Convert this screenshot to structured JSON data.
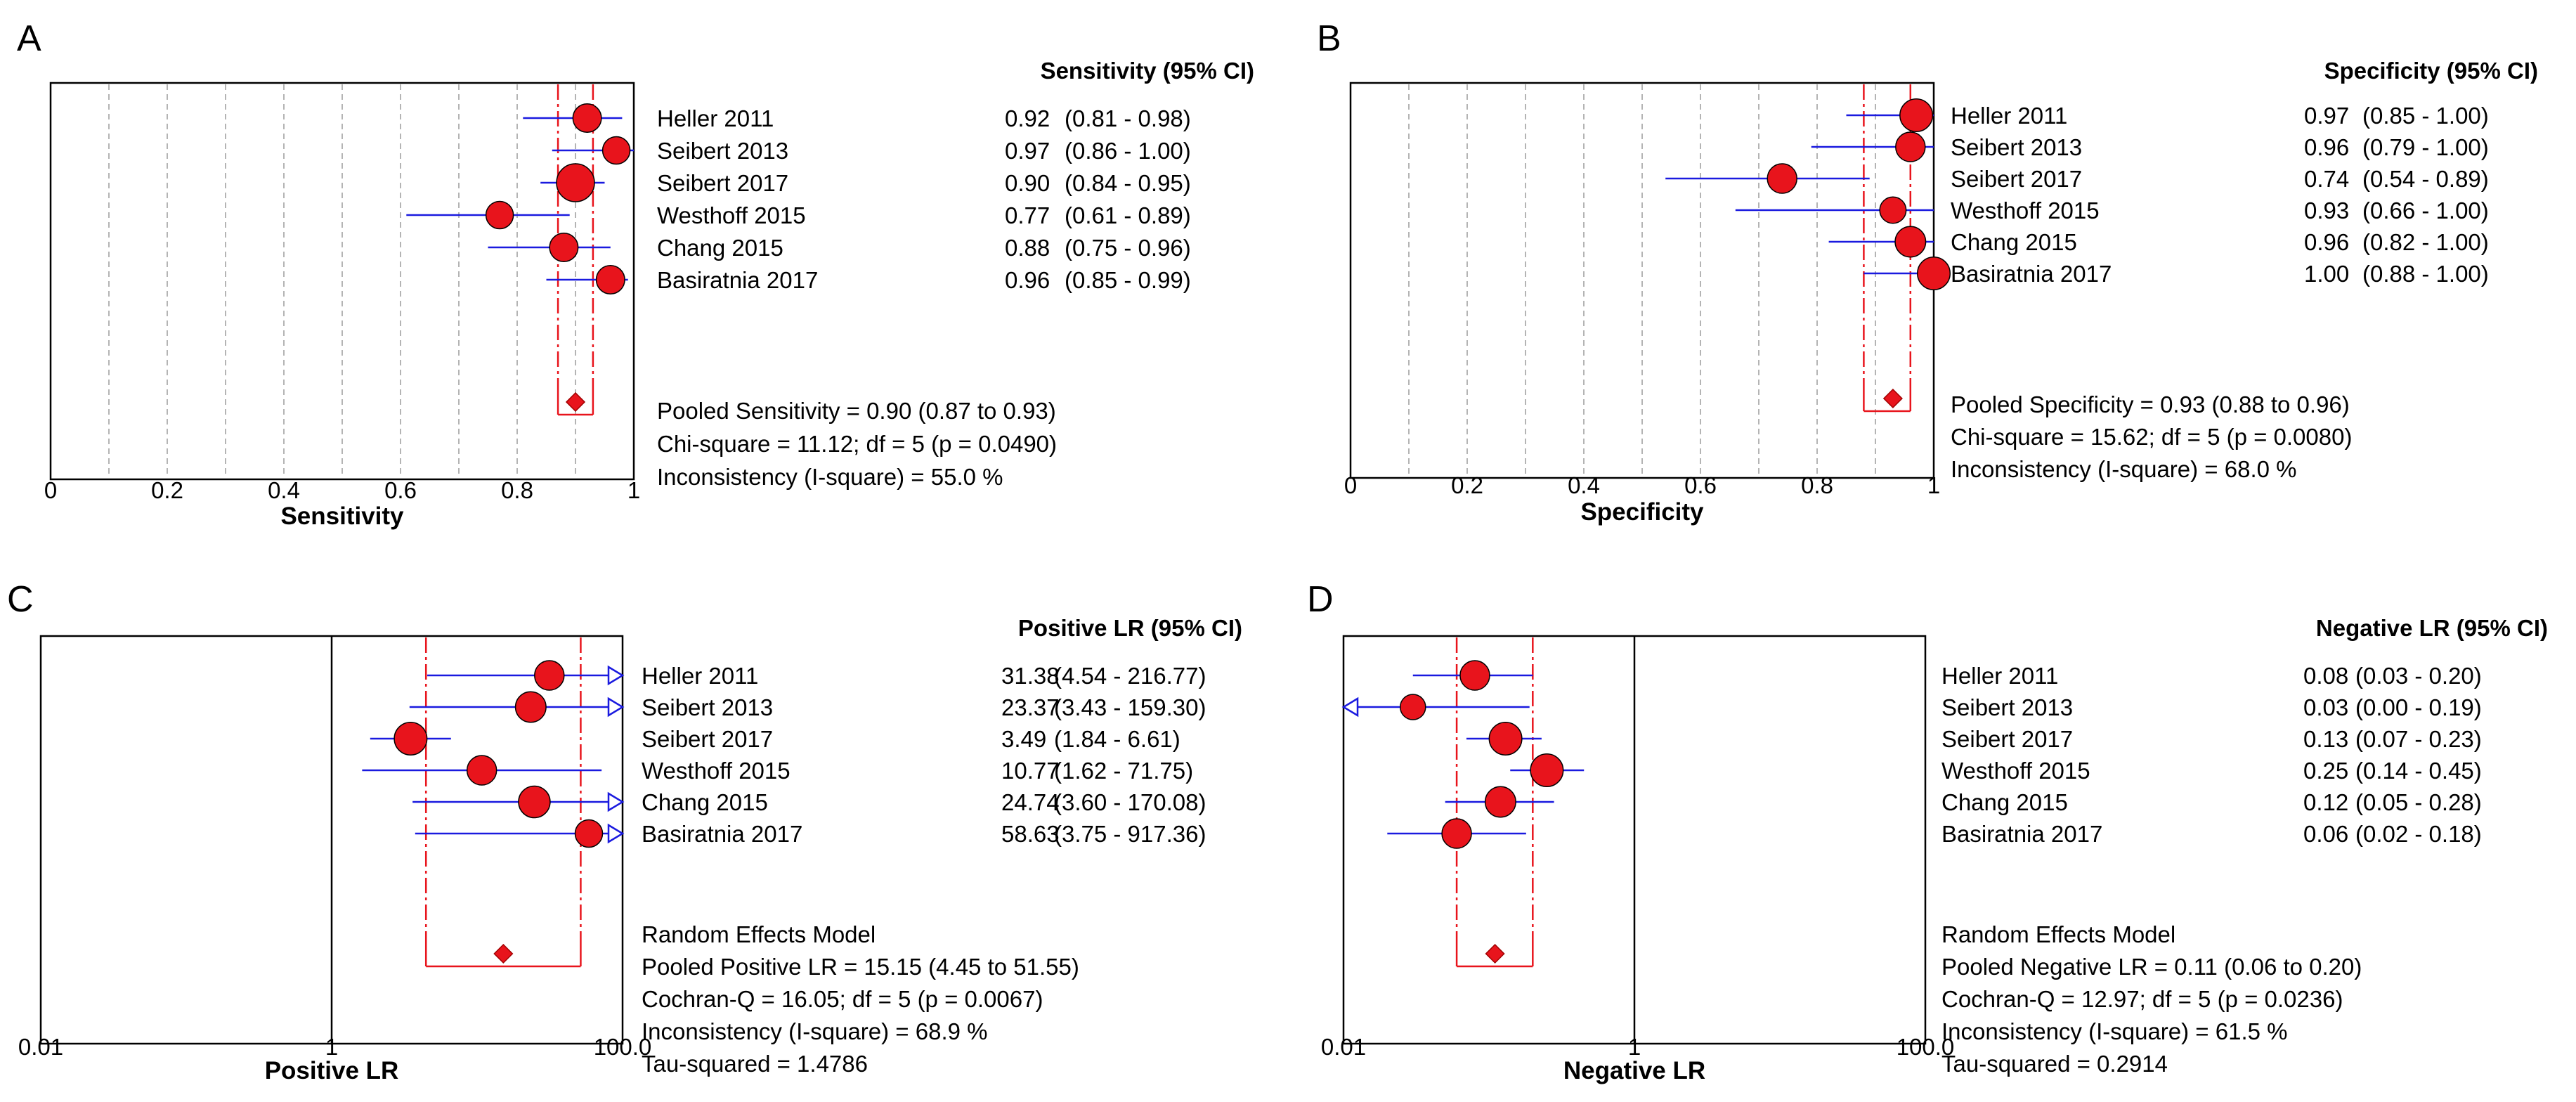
{
  "figure": {
    "background_color": "#ffffff",
    "marker_color": "#e8141c",
    "ci_line_color": "#1a1adf",
    "pooled_line_color": "#e8141c",
    "frame_color": "#000000",
    "grid_color": "#b4b4b4"
  },
  "chart_data": [
    {
      "panel_label": "A",
      "type": "forest",
      "scale": "linear",
      "xlim": [
        0,
        1
      ],
      "ticks": [
        0,
        0.2,
        0.4,
        0.6,
        0.8,
        1
      ],
      "tick_labels": [
        "0",
        "0.2",
        "0.4",
        "0.6",
        "0.8",
        "1"
      ],
      "gridlines": [
        0.1,
        0.2,
        0.3,
        0.4,
        0.5,
        0.6,
        0.7,
        0.8,
        0.9
      ],
      "xlabel": "Sensitivity",
      "header": "Sensitivity (95% CI)",
      "reference": null,
      "studies": [
        {
          "name": "Heller 2011",
          "estimate": 0.92,
          "lower": 0.81,
          "upper": 0.98,
          "estimate_text": "0.92",
          "ci_text": "(0.81 - 0.98)",
          "weight": 0.55
        },
        {
          "name": "Seibert 2013",
          "estimate": 0.97,
          "lower": 0.86,
          "upper": 1.0,
          "estimate_text": "0.97",
          "ci_text": "(0.86 - 1.00)",
          "weight": 0.5
        },
        {
          "name": "Seibert 2017",
          "estimate": 0.9,
          "lower": 0.84,
          "upper": 0.95,
          "estimate_text": "0.90",
          "ci_text": "(0.84 - 0.95)",
          "weight": 1.0
        },
        {
          "name": "Westhoff 2015",
          "estimate": 0.77,
          "lower": 0.61,
          "upper": 0.89,
          "estimate_text": "0.77",
          "ci_text": "(0.61 - 0.89)",
          "weight": 0.5
        },
        {
          "name": "Chang 2015",
          "estimate": 0.88,
          "lower": 0.75,
          "upper": 0.96,
          "estimate_text": "0.88",
          "ci_text": "(0.75 - 0.96)",
          "weight": 0.55
        },
        {
          "name": "Basiratnia 2017",
          "estimate": 0.96,
          "lower": 0.85,
          "upper": 0.99,
          "estimate_text": "0.96",
          "ci_text": "(0.85 - 0.99)",
          "weight": 0.55
        }
      ],
      "pooled": {
        "estimate": 0.9,
        "lower": 0.87,
        "upper": 0.93
      },
      "summary_lines": [
        "Pooled Sensitivity = 0.90 (0.87 to 0.93)",
        "Chi-square = 11.12; df =  5 (p = 0.0490)",
        "Inconsistency (I-square) = 55.0 %"
      ]
    },
    {
      "panel_label": "B",
      "type": "forest",
      "scale": "linear",
      "xlim": [
        0,
        1
      ],
      "ticks": [
        0,
        0.2,
        0.4,
        0.6,
        0.8,
        1
      ],
      "tick_labels": [
        "0",
        "0.2",
        "0.4",
        "0.6",
        "0.8",
        "1"
      ],
      "gridlines": [
        0.1,
        0.2,
        0.3,
        0.4,
        0.5,
        0.6,
        0.7,
        0.8,
        0.9
      ],
      "xlabel": "Specificity",
      "header": "Specificity (95% CI)",
      "reference": null,
      "studies": [
        {
          "name": "Heller 2011",
          "estimate": 0.97,
          "lower": 0.85,
          "upper": 1.0,
          "estimate_text": "0.97",
          "ci_text": "(0.85 - 1.00)",
          "weight": 0.75
        },
        {
          "name": "Seibert 2013",
          "estimate": 0.96,
          "lower": 0.79,
          "upper": 1.0,
          "estimate_text": "0.96",
          "ci_text": "(0.79 - 1.00)",
          "weight": 0.6
        },
        {
          "name": "Seibert 2017",
          "estimate": 0.74,
          "lower": 0.54,
          "upper": 0.89,
          "estimate_text": "0.74",
          "ci_text": "(0.54 - 0.89)",
          "weight": 0.6
        },
        {
          "name": "Westhoff 2015",
          "estimate": 0.93,
          "lower": 0.66,
          "upper": 1.0,
          "estimate_text": "0.93",
          "ci_text": "(0.66 - 1.00)",
          "weight": 0.45
        },
        {
          "name": "Chang 2015",
          "estimate": 0.96,
          "lower": 0.82,
          "upper": 1.0,
          "estimate_text": "0.96",
          "ci_text": "(0.82 - 1.00)",
          "weight": 0.65
        },
        {
          "name": "Basiratnia 2017",
          "estimate": 1.0,
          "lower": 0.88,
          "upper": 1.0,
          "estimate_text": "1.00",
          "ci_text": "(0.88 - 1.00)",
          "weight": 0.75
        }
      ],
      "pooled": {
        "estimate": 0.93,
        "lower": 0.88,
        "upper": 0.96
      },
      "summary_lines": [
        "Pooled Specificity = 0.93 (0.88 to 0.96)",
        "Chi-square = 15.62; df =  5 (p = 0.0080)",
        "Inconsistency (I-square) = 68.0 %"
      ]
    },
    {
      "panel_label": "C",
      "type": "forest",
      "scale": "log",
      "xlim": [
        0.01,
        100
      ],
      "ticks": [
        0.01,
        1,
        100
      ],
      "tick_labels": [
        "0.01",
        "1",
        "100.0"
      ],
      "gridlines": [],
      "xlabel": "Positive LR",
      "header": "Positive LR (95% CI)",
      "reference": 1,
      "studies": [
        {
          "name": "Heller 2011",
          "estimate": 31.38,
          "lower": 4.54,
          "upper": 216.77,
          "estimate_text": "31.38",
          "ci_text": "(4.54 - 216.77)",
          "weight": 0.6
        },
        {
          "name": "Seibert 2013",
          "estimate": 23.37,
          "lower": 3.43,
          "upper": 159.3,
          "estimate_text": "23.37",
          "ci_text": "(3.43 - 159.30)",
          "weight": 0.65
        },
        {
          "name": "Seibert 2017",
          "estimate": 3.49,
          "lower": 1.84,
          "upper": 6.61,
          "estimate_text": "3.49",
          "ci_text": "(1.84 - 6.61)",
          "weight": 0.75
        },
        {
          "name": "Westhoff 2015",
          "estimate": 10.77,
          "lower": 1.62,
          "upper": 71.75,
          "estimate_text": "10.77",
          "ci_text": "(1.62 - 71.75)",
          "weight": 0.6
        },
        {
          "name": "Chang 2015",
          "estimate": 24.74,
          "lower": 3.6,
          "upper": 170.08,
          "estimate_text": "24.74",
          "ci_text": "(3.60 - 170.08)",
          "weight": 0.7
        },
        {
          "name": "Basiratnia 2017",
          "estimate": 58.63,
          "lower": 3.75,
          "upper": 917.36,
          "estimate_text": "58.63",
          "ci_text": "(3.75 - 917.36)",
          "weight": 0.5
        }
      ],
      "pooled": {
        "estimate": 15.15,
        "lower": 4.45,
        "upper": 51.55
      },
      "summary_lines": [
        "Random Effects Model",
        "Pooled Positive LR = 15.15 (4.45 to 51.55)",
        "Cochran-Q = 16.05; df =  5 (p = 0.0067)",
        "Inconsistency (I-square) = 68.9 %",
        "Tau-squared = 1.4786"
      ]
    },
    {
      "panel_label": "D",
      "type": "forest",
      "scale": "log",
      "xlim": [
        0.01,
        100
      ],
      "ticks": [
        0.01,
        1,
        100
      ],
      "tick_labels": [
        "0.01",
        "1",
        "100.0"
      ],
      "gridlines": [],
      "xlabel": "Negative LR",
      "header": "Negative LR (95% CI)",
      "reference": 1,
      "studies": [
        {
          "name": "Heller 2011",
          "estimate": 0.08,
          "lower": 0.03,
          "upper": 0.2,
          "estimate_text": "0.08",
          "ci_text": "(0.03 - 0.20)",
          "weight": 0.6
        },
        {
          "name": "Seibert 2013",
          "estimate": 0.03,
          "lower": 0.0,
          "upper": 0.19,
          "estimate_text": "0.03",
          "ci_text": "(0.00 - 0.19)",
          "weight": 0.4
        },
        {
          "name": "Seibert 2017",
          "estimate": 0.13,
          "lower": 0.07,
          "upper": 0.23,
          "estimate_text": "0.13",
          "ci_text": "(0.07 - 0.23)",
          "weight": 0.75
        },
        {
          "name": "Westhoff 2015",
          "estimate": 0.25,
          "lower": 0.14,
          "upper": 0.45,
          "estimate_text": "0.25",
          "ci_text": "(0.14 - 0.45)",
          "weight": 0.75
        },
        {
          "name": "Chang 2015",
          "estimate": 0.12,
          "lower": 0.05,
          "upper": 0.28,
          "estimate_text": "0.12",
          "ci_text": "(0.05 - 0.28)",
          "weight": 0.65
        },
        {
          "name": "Basiratnia 2017",
          "estimate": 0.06,
          "lower": 0.02,
          "upper": 0.18,
          "estimate_text": "0.06",
          "ci_text": "(0.02 - 0.18)",
          "weight": 0.6
        }
      ],
      "pooled": {
        "estimate": 0.11,
        "lower": 0.06,
        "upper": 0.2
      },
      "summary_lines": [
        "Random Effects Model",
        "Pooled Negative LR = 0.11 (0.06 to 0.20)",
        "Cochran-Q = 12.97; df =  5 (p = 0.0236)",
        "Inconsistency (I-square) = 61.5 %",
        "Tau-squared = 0.2914"
      ]
    }
  ]
}
